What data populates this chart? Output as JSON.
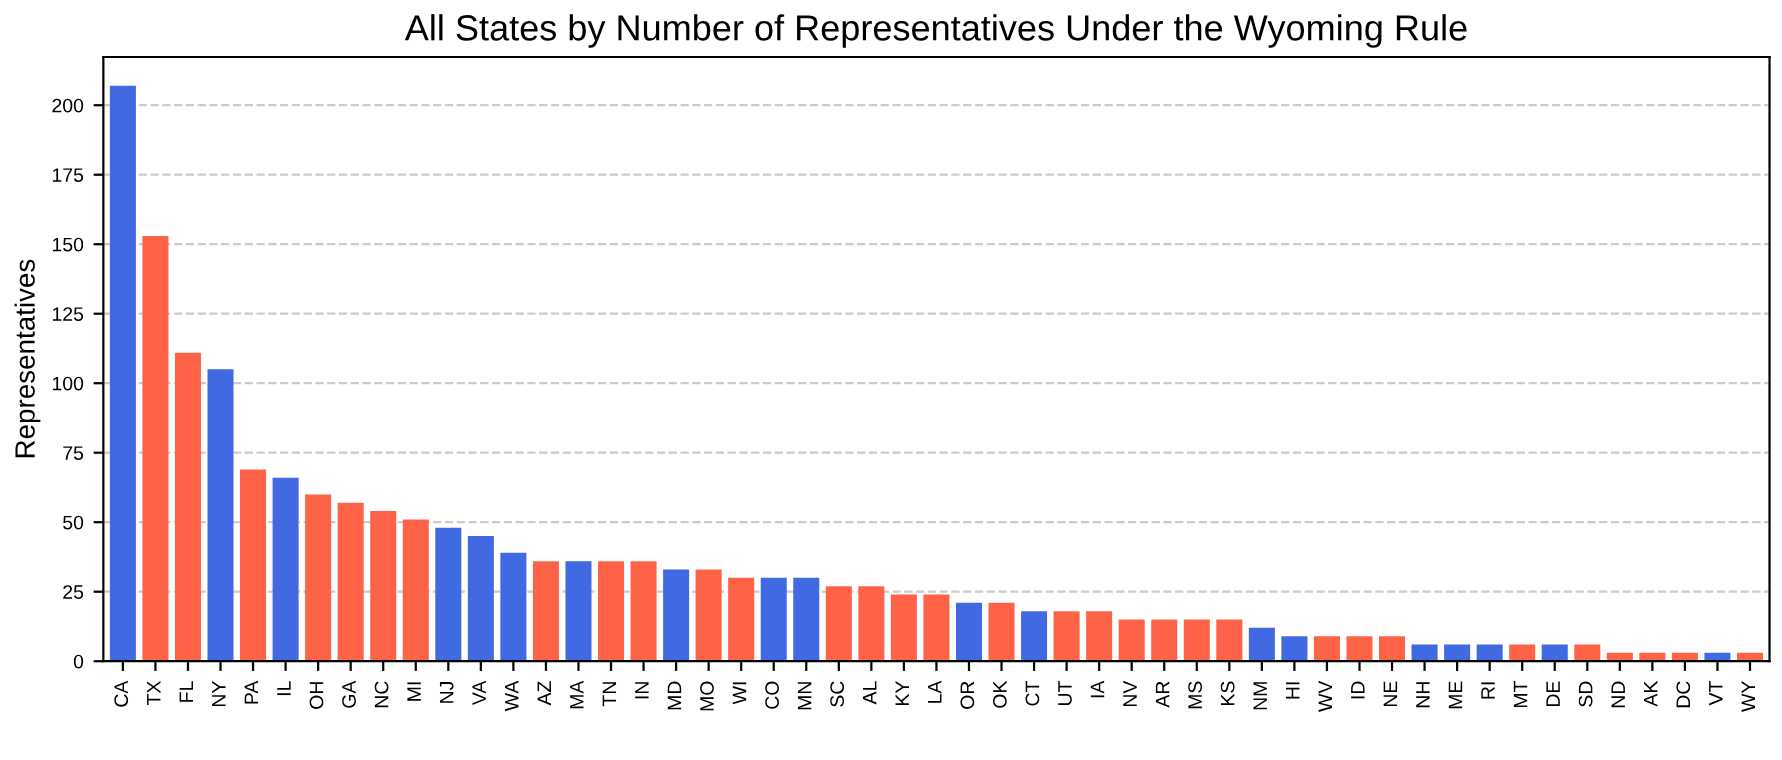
{
  "chart_data": {
    "type": "bar",
    "title": "All States by Number of Representatives Under the Wyoming Rule",
    "ylabel": "Representatives",
    "categories": [
      "CA",
      "TX",
      "FL",
      "NY",
      "PA",
      "IL",
      "OH",
      "GA",
      "NC",
      "MI",
      "NJ",
      "VA",
      "WA",
      "AZ",
      "MA",
      "TN",
      "IN",
      "MD",
      "MO",
      "WI",
      "CO",
      "MN",
      "SC",
      "AL",
      "KY",
      "LA",
      "OR",
      "OK",
      "CT",
      "UT",
      "IA",
      "NV",
      "AR",
      "MS",
      "KS",
      "NM",
      "HI",
      "WV",
      "ID",
      "NE",
      "NH",
      "ME",
      "RI",
      "MT",
      "DE",
      "SD",
      "ND",
      "AK",
      "DC",
      "VT",
      "WY"
    ],
    "values": [
      207,
      153,
      111,
      105,
      69,
      66,
      60,
      57,
      54,
      51,
      48,
      45,
      39,
      36,
      36,
      36,
      36,
      33,
      33,
      30,
      30,
      30,
      27,
      27,
      24,
      24,
      21,
      21,
      18,
      18,
      18,
      15,
      15,
      15,
      15,
      12,
      9,
      9,
      9,
      9,
      6,
      6,
      6,
      6,
      6,
      6,
      3,
      3,
      3,
      3,
      3
    ],
    "colors": [
      "#4169e1",
      "#ff6347",
      "#ff6347",
      "#4169e1",
      "#ff6347",
      "#4169e1",
      "#ff6347",
      "#ff6347",
      "#ff6347",
      "#ff6347",
      "#4169e1",
      "#4169e1",
      "#4169e1",
      "#ff6347",
      "#4169e1",
      "#ff6347",
      "#ff6347",
      "#4169e1",
      "#ff6347",
      "#ff6347",
      "#4169e1",
      "#4169e1",
      "#ff6347",
      "#ff6347",
      "#ff6347",
      "#ff6347",
      "#4169e1",
      "#ff6347",
      "#4169e1",
      "#ff6347",
      "#ff6347",
      "#ff6347",
      "#ff6347",
      "#ff6347",
      "#ff6347",
      "#4169e1",
      "#4169e1",
      "#ff6347",
      "#ff6347",
      "#ff6347",
      "#4169e1",
      "#4169e1",
      "#4169e1",
      "#ff6347",
      "#4169e1",
      "#ff6347",
      "#ff6347",
      "#ff6347",
      "#ff6347",
      "#4169e1",
      "#ff6347"
    ],
    "ylim": [
      0,
      217.35
    ],
    "yticks": [
      0,
      25,
      50,
      75,
      100,
      125,
      150,
      175,
      200
    ],
    "grid": "y",
    "legend": false
  }
}
